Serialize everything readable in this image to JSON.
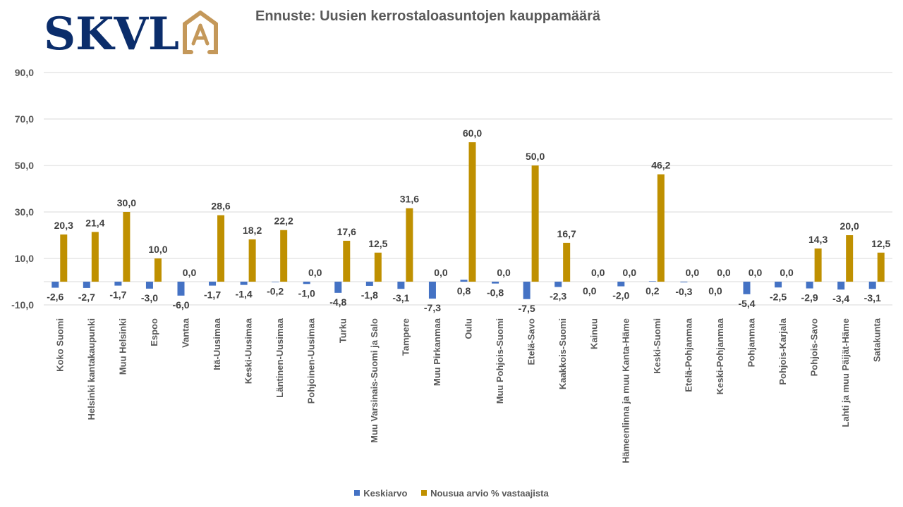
{
  "logo": {
    "text": "SKVL",
    "badge": "A",
    "colors": {
      "text": "#0b2d6b",
      "badge": "#c4985a"
    }
  },
  "chart_data": {
    "type": "bar",
    "title": "Ennuste: Uusien kerrostaloasuntojen kauppamäärä",
    "xlabel": "",
    "ylabel": "",
    "ylim": [
      -10,
      90
    ],
    "yticks": [
      "90,0",
      "70,0",
      "50,0",
      "30,0",
      "10,0",
      "-10,0"
    ],
    "ytick_values": [
      90,
      70,
      50,
      30,
      10,
      -10
    ],
    "grid": true,
    "legend_position": "bottom",
    "categories": [
      "Koko Suomi",
      "Helsinki kantakaupunki",
      "Muu Helsinki",
      "Espoo",
      "Vantaa",
      "Itä-Uusimaa",
      "Keski-Uusimaa",
      "Läntinen-Uusimaa",
      "Pohjoinen-Uusimaa",
      "Turku",
      "Muu Varsinais-Suomi ja Salo",
      "Tampere",
      "Muu Pirkanmaa",
      "Oulu",
      "Muu Pohjois-Suomi",
      "Etelä-Savo",
      "Kaakkois-Suomi",
      "Kainuu",
      "Hämeenlinna ja muu Kanta-Häme",
      "Keski-Suomi",
      "Etelä-Pohjanmaa",
      "Keski-Pohjanmaa",
      "Pohjanmaa",
      "Pohjois-Karjala",
      "Pohjois-Savo",
      "Lahti ja muu Päijät-Häme",
      "Satakunta"
    ],
    "series": [
      {
        "name": "Keskiarvo",
        "color": "#4472c4",
        "values": [
          -2.6,
          -2.7,
          -1.7,
          -3.0,
          -6.0,
          -1.7,
          -1.4,
          -0.2,
          -1.0,
          -4.8,
          -1.8,
          -3.1,
          -7.3,
          0.8,
          -0.8,
          -7.5,
          -2.3,
          0.0,
          -2.0,
          0.2,
          -0.3,
          0.0,
          -5.4,
          -2.5,
          -2.9,
          -3.4,
          -3.1
        ]
      },
      {
        "name": "Nousua arvio % vastaajista",
        "color": "#bf9000",
        "values": [
          20.3,
          21.4,
          30.0,
          10.0,
          0.0,
          28.6,
          18.2,
          22.2,
          0.0,
          17.6,
          12.5,
          31.6,
          0.0,
          60.0,
          0.0,
          50.0,
          16.7,
          0.0,
          0.0,
          46.2,
          0.0,
          0.0,
          0.0,
          0.0,
          14.3,
          20.0,
          12.5
        ]
      }
    ]
  }
}
